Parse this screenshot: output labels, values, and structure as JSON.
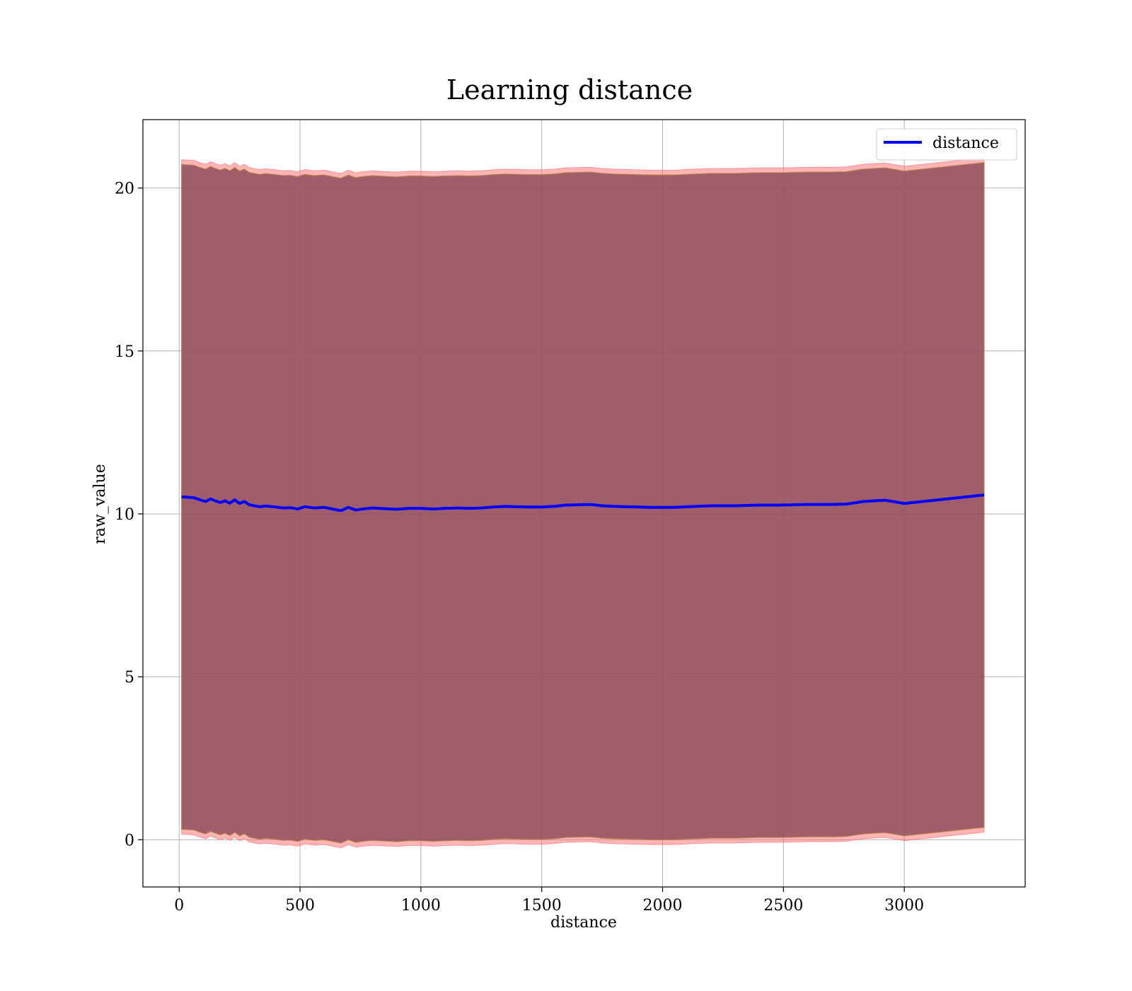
{
  "chart_data": {
    "type": "area",
    "title": "Learning distance",
    "xlabel": "distance",
    "ylabel": "raw_value",
    "xlim": [
      -150,
      3500
    ],
    "ylim": [
      -1.45,
      22.1
    ],
    "xticks": [
      0,
      500,
      1000,
      1500,
      2000,
      2500,
      3000
    ],
    "yticks": [
      0,
      5,
      10,
      15,
      20
    ],
    "grid": true,
    "legend": {
      "placement": "top-right",
      "entries": [
        "distance"
      ]
    },
    "colors": {
      "line": "#0000ff",
      "outer_band": "#ff6b6b",
      "inner_band": "#8b4a5a",
      "grid": "#b0b0b0"
    },
    "series": [
      {
        "name": "distance",
        "x": [
          10,
          60,
          90,
          110,
          130,
          150,
          170,
          190,
          210,
          230,
          250,
          270,
          290,
          310,
          330,
          360,
          400,
          430,
          460,
          490,
          520,
          560,
          600,
          640,
          670,
          700,
          730,
          760,
          800,
          850,
          900,
          950,
          1000,
          1050,
          1100,
          1150,
          1200,
          1250,
          1300,
          1350,
          1400,
          1450,
          1500,
          1550,
          1600,
          1650,
          1700,
          1750,
          1800,
          1850,
          1900,
          1950,
          2000,
          2050,
          2100,
          2200,
          2300,
          2400,
          2500,
          2600,
          2700,
          2760,
          2830,
          2920,
          3000,
          3330
        ],
        "y": [
          10.52,
          10.5,
          10.42,
          10.38,
          10.46,
          10.4,
          10.35,
          10.4,
          10.33,
          10.43,
          10.32,
          10.38,
          10.28,
          10.25,
          10.22,
          10.24,
          10.21,
          10.18,
          10.19,
          10.15,
          10.22,
          10.18,
          10.2,
          10.14,
          10.1,
          10.2,
          10.12,
          10.15,
          10.18,
          10.16,
          10.14,
          10.17,
          10.17,
          10.15,
          10.17,
          10.18,
          10.17,
          10.18,
          10.21,
          10.23,
          10.22,
          10.21,
          10.21,
          10.23,
          10.27,
          10.28,
          10.29,
          10.25,
          10.23,
          10.22,
          10.21,
          10.2,
          10.2,
          10.2,
          10.22,
          10.25,
          10.25,
          10.27,
          10.27,
          10.29,
          10.29,
          10.3,
          10.38,
          10.42,
          10.32,
          10.58
        ]
      }
    ],
    "bands": {
      "outer": {
        "upper_offset": 10.35,
        "lower_offset": -10.35
      },
      "inner": {
        "upper_offset": 10.2,
        "lower_offset": -10.2
      }
    }
  }
}
